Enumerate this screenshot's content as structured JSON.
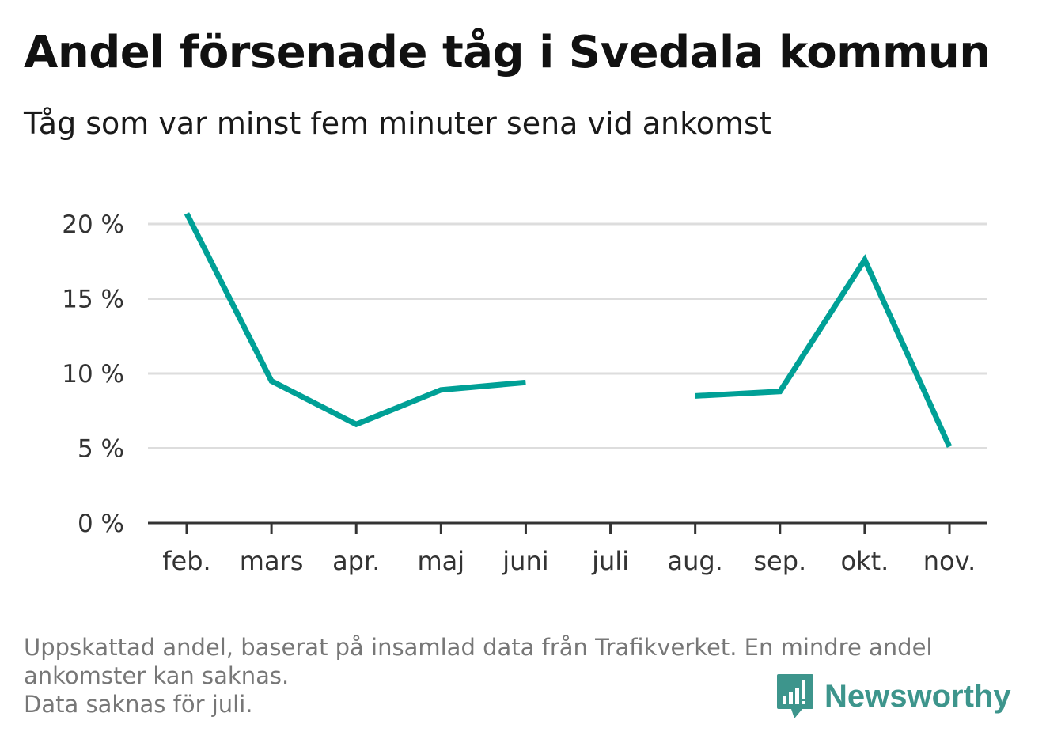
{
  "title": "Andel försenade tåg i Svedala kommun",
  "subtitle": "Tåg som var minst fem minuter sena vid ankomst",
  "footnote": [
    "Uppskattad andel, baserat på insamlad data från Trafikverket. En mindre andel",
    "ankomster kan saknas.",
    "Data saknas för juli."
  ],
  "brand": {
    "name": "Newsworthy",
    "icon": "newsworthy-logo-icon",
    "color": "#3d958c"
  },
  "chart_data": {
    "type": "line",
    "title": "Andel försenade tåg i Svedala kommun",
    "subtitle": "Tåg som var minst fem minuter sena vid ankomst",
    "categories": [
      "feb.",
      "mars",
      "apr.",
      "maj",
      "juni",
      "juli",
      "aug.",
      "sep.",
      "okt.",
      "nov."
    ],
    "series": [
      {
        "values": [
          20.7,
          9.5,
          6.6,
          8.9,
          9.4,
          null,
          8.5,
          8.8,
          17.6,
          5.1
        ],
        "color": "#00a096"
      }
    ],
    "ylim": [
      0,
      20
    ],
    "yticks": [
      0,
      5,
      10,
      15,
      20
    ],
    "ytick_labels": [
      "0 %",
      "5 %",
      "10 %",
      "15 %",
      "20 %"
    ],
    "grid": true
  }
}
